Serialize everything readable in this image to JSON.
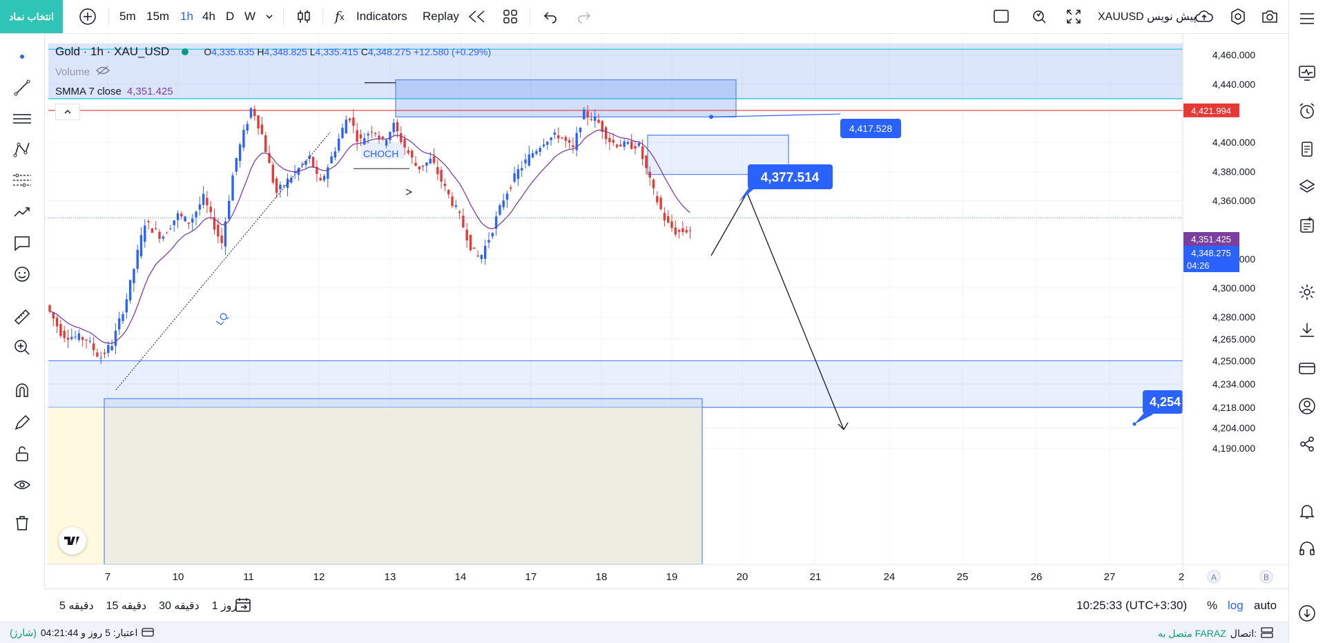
{
  "toolbar": {
    "symbol_button": "انتخاب نماد",
    "intervals": [
      "5m",
      "15m",
      "1h",
      "4h",
      "D",
      "W"
    ],
    "active_interval": "1h",
    "indicators_label": "Indicators",
    "replay_label": "Replay",
    "draft_label": "XAUUSD پیش نویس"
  },
  "legend": {
    "title": "Gold · 1h · XAU_USD",
    "o_label": "O",
    "o_value": "4,335.635",
    "h_label": "H",
    "h_value": "4,348.825",
    "l_label": "L",
    "l_value": "4,335.415",
    "c_label": "C",
    "c_value": "4,348.275",
    "change": "+12.580 (+0.29%)",
    "volume_label": "Volume",
    "smma_label": "SMMA 7 close",
    "smma_value": "4,351.425"
  },
  "colors": {
    "up": "#2962ff",
    "down": "#e53935",
    "smma": "#7b3fa0",
    "accent": "#2962ff",
    "zone_blue": "#5b8def",
    "zone_yellow": "#fff9e0",
    "brand": "#2ec4b6"
  },
  "chart_data": {
    "type": "candlestick",
    "title": "Gold · 1h · XAU_USD",
    "ylim": [
      4180,
      4468
    ],
    "y_ticks": [
      "4,460.000",
      "4,440.000",
      "4,421.994",
      "4,400.000",
      "4,380.000",
      "4,360.000",
      "4,320.000",
      "4,300.000",
      "4,280.000",
      "4,265.000",
      "4,250.000",
      "4,234.000",
      "4,218.000",
      "4,204.000",
      "4,190.000"
    ],
    "x_ticks": [
      "7",
      "10",
      "11",
      "12",
      "13",
      "14",
      "17",
      "18",
      "19",
      "20",
      "21",
      "24",
      "25",
      "26",
      "27",
      "2"
    ],
    "price_labels": [
      {
        "value": 4421.994,
        "text": "4,421.994",
        "color": "#e53935"
      },
      {
        "value": 4351.425,
        "text": "4,351.425",
        "color": "#7b3fa0"
      },
      {
        "value": 4348.275,
        "text": "4,348.275",
        "color": "#2962ff",
        "sub": "04:26"
      }
    ],
    "annotations": {
      "callout_1": "4,417.528",
      "callout_2": "4,377.514",
      "callout_3": "4,254",
      "choch": "CHOCH",
      "lq": "LQ"
    },
    "smma_period": 7,
    "horizontal_levels": [
      4421.994
    ],
    "axis_letters": [
      "A",
      "B"
    ]
  },
  "bottombar": {
    "ranges": [
      "5 دقیقه",
      "15 دقیقه",
      "30 دقیقه",
      "1 روز"
    ],
    "time": "10:25:33 (UTC+3:30)",
    "pct": "%",
    "log": "log",
    "auto": "auto"
  },
  "statusbar": {
    "left_text": "اعتبار: 5 روز و 04:21:44",
    "left_extra": "(شارژ)",
    "right_text": "اتصال:",
    "right_status": "متصل به FARAZ"
  }
}
